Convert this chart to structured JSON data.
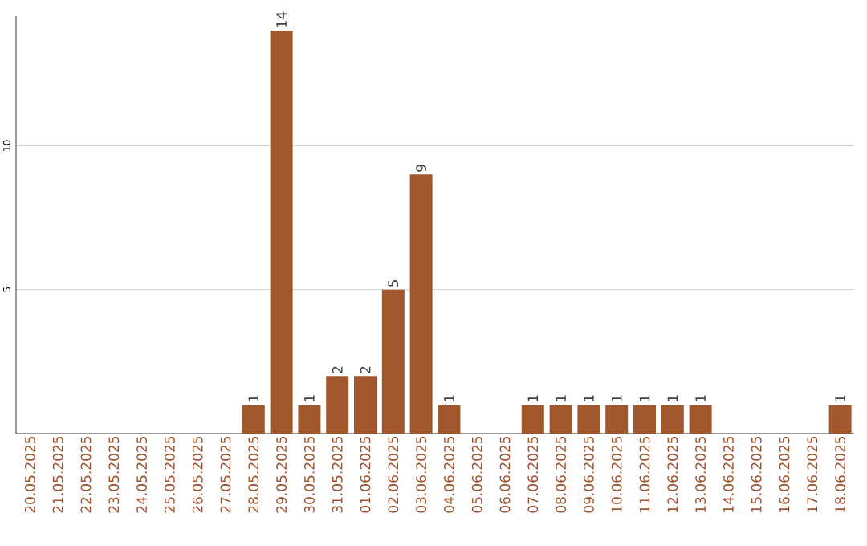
{
  "chart_data": {
    "type": "bar",
    "categories": [
      "20.05.2025",
      "21.05.2025",
      "22.05.2025",
      "23.05.2025",
      "24.05.2025",
      "25.05.2025",
      "26.05.2025",
      "27.05.2025",
      "28.05.2025",
      "29.05.2025",
      "30.05.2025",
      "31.05.2025",
      "01.06.2025",
      "02.06.2025",
      "03.06.2025",
      "04.06.2025",
      "05.06.2025",
      "06.06.2025",
      "07.06.2025",
      "08.06.2025",
      "09.06.2025",
      "10.06.2025",
      "11.06.2025",
      "12.06.2025",
      "13.06.2025",
      "14.06.2025",
      "15.06.2025",
      "16.06.2025",
      "17.06.2025",
      "18.06.2025"
    ],
    "values": [
      0,
      0,
      0,
      0,
      0,
      0,
      0,
      0,
      1,
      14,
      1,
      2,
      2,
      5,
      9,
      1,
      0,
      0,
      1,
      1,
      1,
      1,
      1,
      1,
      1,
      0,
      0,
      0,
      0,
      1
    ],
    "value_labels": [
      null,
      null,
      null,
      null,
      null,
      null,
      null,
      null,
      "1",
      "14",
      "1",
      "2",
      "2",
      "5",
      "9",
      "1",
      null,
      null,
      "1",
      "1",
      "1",
      "1",
      "1",
      "1",
      "1",
      null,
      null,
      null,
      null,
      "1"
    ],
    "color": "#a0572b",
    "ylim": [
      0,
      14.5
    ],
    "yticks": [
      5,
      10
    ],
    "grid": "y"
  }
}
